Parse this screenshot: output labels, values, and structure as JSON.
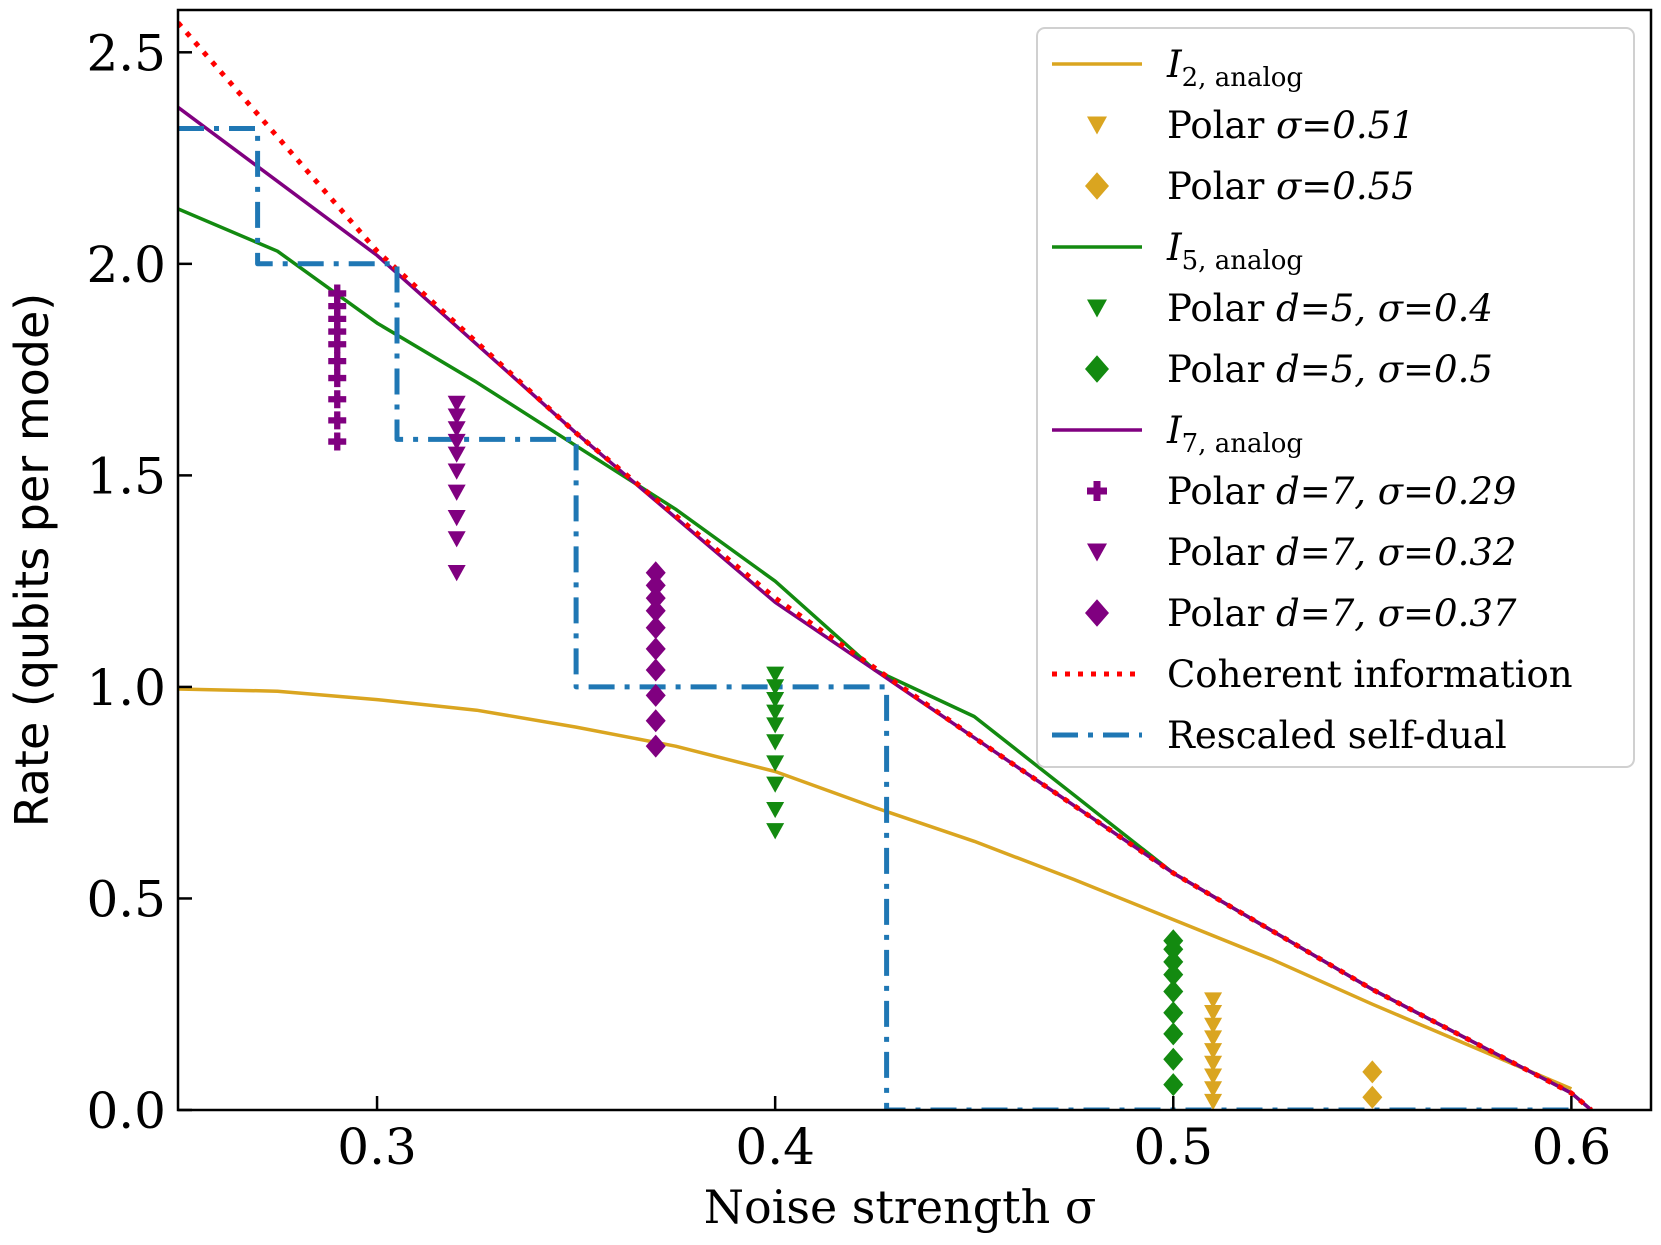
{
  "chart_data": {
    "type": "line",
    "title": "",
    "xlabel": "Noise strength σ",
    "ylabel": "Rate (qubits per mode)",
    "xlim": [
      0.25,
      0.62
    ],
    "ylim": [
      0.0,
      2.6
    ],
    "xticks": [
      0.3,
      0.4,
      0.5,
      0.6
    ],
    "xtick_labels": [
      "0.3",
      "0.4",
      "0.5",
      "0.6"
    ],
    "yticks": [
      0.0,
      0.5,
      1.0,
      1.5,
      2.0,
      2.5
    ],
    "ytick_labels": [
      "0.0",
      "0.5",
      "1.0",
      "1.5",
      "2.0",
      "2.5"
    ],
    "legend_position": "top-right",
    "colors": {
      "orange": "#daa520",
      "green": "#138a10",
      "purple": "#800080",
      "red": "#ff0000",
      "blue": "#1f77b4"
    },
    "series": [
      {
        "name": "I2,analog",
        "legend_main": "I",
        "legend_sub": "2, analog",
        "kind": "line",
        "color": "#daa520",
        "x": [
          0.25,
          0.275,
          0.3,
          0.325,
          0.35,
          0.375,
          0.4,
          0.425,
          0.45,
          0.475,
          0.5,
          0.525,
          0.55,
          0.575,
          0.6
        ],
        "y": [
          0.995,
          0.99,
          0.97,
          0.945,
          0.905,
          0.86,
          0.8,
          0.715,
          0.635,
          0.545,
          0.45,
          0.355,
          0.25,
          0.15,
          0.05
        ]
      },
      {
        "name": "Polar σ=0.51",
        "kind": "scatter",
        "marker": "triangle-down",
        "color": "#daa520",
        "x": 0.51,
        "y": [
          0.02,
          0.05,
          0.08,
          0.11,
          0.14,
          0.17,
          0.2,
          0.23,
          0.26
        ]
      },
      {
        "name": "Polar σ=0.55",
        "kind": "scatter",
        "marker": "diamond",
        "color": "#daa520",
        "x": 0.55,
        "y": [
          0.03,
          0.09
        ]
      },
      {
        "name": "I5,analog",
        "legend_main": "I",
        "legend_sub": "5, analog",
        "kind": "line",
        "color": "#138a10",
        "x": [
          0.25,
          0.275,
          0.3,
          0.325,
          0.35,
          0.375,
          0.4,
          0.425,
          0.45,
          0.5,
          0.55,
          0.6,
          0.605
        ],
        "y": [
          2.13,
          2.03,
          1.86,
          1.72,
          1.57,
          1.42,
          1.25,
          1.04,
          0.93,
          0.56,
          0.285,
          0.04,
          0.0
        ]
      },
      {
        "name": "Polar d=5, σ=0.4",
        "kind": "scatter",
        "marker": "triangle-down",
        "color": "#138a10",
        "x": 0.4,
        "y": [
          0.66,
          0.71,
          0.77,
          0.82,
          0.87,
          0.91,
          0.94,
          0.97,
          1.0,
          1.03
        ]
      },
      {
        "name": "Polar d=5, σ=0.5",
        "kind": "scatter",
        "marker": "diamond",
        "color": "#138a10",
        "x": 0.5,
        "y": [
          0.06,
          0.12,
          0.18,
          0.23,
          0.28,
          0.32,
          0.35,
          0.38,
          0.4
        ]
      },
      {
        "name": "I7,analog",
        "legend_main": "I",
        "legend_sub": "7, analog",
        "kind": "line",
        "color": "#800080",
        "x": [
          0.25,
          0.3,
          0.35,
          0.4,
          0.45,
          0.5,
          0.55,
          0.6,
          0.605
        ],
        "y": [
          2.37,
          2.02,
          1.6,
          1.2,
          0.88,
          0.56,
          0.285,
          0.04,
          0.0
        ]
      },
      {
        "name": "Polar d=7, σ=0.29",
        "kind": "scatter",
        "marker": "plus",
        "color": "#800080",
        "x": 0.29,
        "y": [
          1.58,
          1.63,
          1.68,
          1.73,
          1.77,
          1.81,
          1.84,
          1.87,
          1.9,
          1.93
        ]
      },
      {
        "name": "Polar d=7, σ=0.32",
        "kind": "scatter",
        "marker": "triangle-down",
        "color": "#800080",
        "x": 0.32,
        "y": [
          1.27,
          1.35,
          1.4,
          1.46,
          1.51,
          1.55,
          1.58,
          1.61,
          1.64,
          1.67
        ]
      },
      {
        "name": "Polar d=7, σ=0.37",
        "kind": "scatter",
        "marker": "diamond",
        "color": "#800080",
        "x": 0.37,
        "y": [
          0.86,
          0.92,
          0.98,
          1.04,
          1.09,
          1.14,
          1.18,
          1.21,
          1.24,
          1.27
        ]
      },
      {
        "name": "Coherent information",
        "kind": "line",
        "style": "dotted",
        "color": "#ff0000",
        "x": [
          0.25,
          0.3,
          0.35,
          0.4,
          0.45,
          0.5,
          0.55,
          0.6,
          0.605
        ],
        "y": [
          2.57,
          2.03,
          1.6,
          1.21,
          0.88,
          0.56,
          0.285,
          0.04,
          0.0
        ]
      },
      {
        "name": "Rescaled self-dual",
        "kind": "line",
        "style": "dashdot",
        "color": "#1f77b4",
        "x": [
          0.25,
          0.27,
          0.27,
          0.305,
          0.305,
          0.35,
          0.35,
          0.428,
          0.428,
          0.6
        ],
        "y": [
          2.32,
          2.32,
          2.0,
          2.0,
          1.585,
          1.585,
          1.0,
          1.0,
          0.0,
          0.0
        ]
      }
    ]
  }
}
